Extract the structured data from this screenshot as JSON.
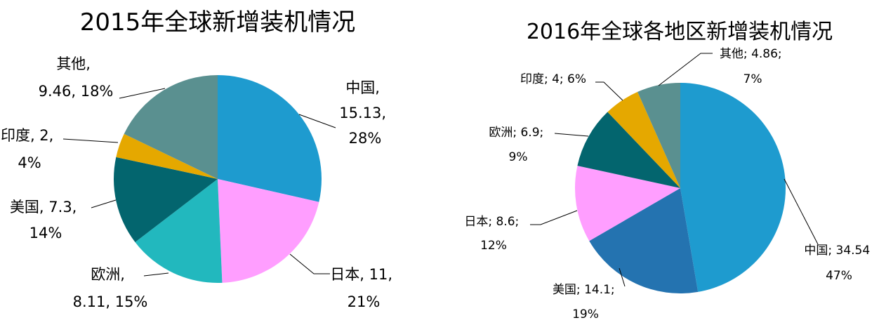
{
  "chart_data": [
    {
      "type": "pie",
      "title": "2015年全球新增装机情况",
      "slices": [
        {
          "name": "中国",
          "value": 15.13,
          "percent": "28%",
          "color": "#1E9BCF",
          "lines": [
            "中国,",
            "15.13,",
            "28%"
          ]
        },
        {
          "name": "日本",
          "value": 11,
          "percent": "21%",
          "color": "#FF9EFF",
          "lines": [
            "日本, 11,",
            "21%"
          ]
        },
        {
          "name": "欧洲",
          "value": 8.11,
          "percent": "15%",
          "color": "#22B8BE",
          "lines": [
            "欧洲,",
            "8.11, 15%"
          ]
        },
        {
          "name": "美国",
          "value": 7.3,
          "percent": "14%",
          "color": "#03656E",
          "lines": [
            "美国, 7.3,",
            "14%"
          ]
        },
        {
          "name": "印度",
          "value": 2,
          "percent": "4%",
          "color": "#E5A800",
          "lines": [
            "印度, 2,",
            "4%"
          ]
        },
        {
          "name": "其他",
          "value": 9.46,
          "percent": "18%",
          "color": "#5A9090",
          "lines": [
            "其他,",
            "9.46, 18%"
          ]
        }
      ]
    },
    {
      "type": "pie",
      "title": "2016年全球各地区新增装机情况",
      "slices": [
        {
          "name": "中国",
          "value": 34.54,
          "percent": "47%",
          "color": "#1E9BCF",
          "lines": [
            "中国; 34.54",
            "47%"
          ]
        },
        {
          "name": "美国",
          "value": 14.1,
          "percent": "19%",
          "color": "#2473B0",
          "lines": [
            "美国; 14.1;",
            "19%"
          ]
        },
        {
          "name": "日本",
          "value": 8.6,
          "percent": "12%",
          "color": "#FF9EFF",
          "lines": [
            "日本; 8.6;",
            "12%"
          ]
        },
        {
          "name": "欧洲",
          "value": 6.9,
          "percent": "9%",
          "color": "#03656E",
          "lines": [
            "欧洲; 6.9;",
            "9%"
          ]
        },
        {
          "name": "印度",
          "value": 4,
          "percent": "6%",
          "color": "#E5A800",
          "lines": [
            "印度; 4; 6%"
          ]
        },
        {
          "name": "其他",
          "value": 4.86,
          "percent": "7%",
          "color": "#5A9090",
          "lines": [
            "其他; 4.86;",
            "7%"
          ]
        }
      ]
    }
  ]
}
